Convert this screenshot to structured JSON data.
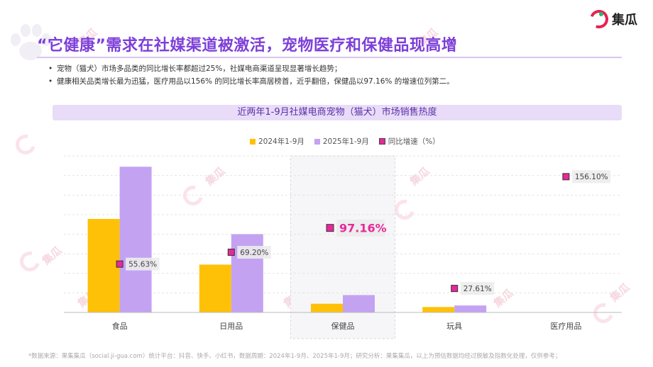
{
  "brand": {
    "logo_text": "集瓜"
  },
  "title": "“它健康”需求在社媒渠道被激活，宠物医疗和保健品现高增",
  "bullets": [
    "宠物（猫犬）市场多品类的同比增长率都超过25%，社媒电商渠道呈现显著增长趋势；",
    "健康相关品类增长最为迅猛，医疗用品以156% 的同比增长率高居榜首，近乎翻倍，保健品以97.16% 的增速位列第二。"
  ],
  "watermark": "集瓜",
  "chart_data": {
    "type": "bar",
    "title": "近两年1-9月社媒电商宠物（猫犬）市场销售热度",
    "categories": [
      "食品",
      "日用品",
      "保健品",
      "玩具",
      "医疗用品"
    ],
    "series": [
      {
        "name": "2024年1-9月",
        "color": "#ffc107",
        "values": [
          43,
          22,
          4,
          2.5,
          0
        ]
      },
      {
        "name": "2025年1-9月",
        "color": "#c3a2f2",
        "values": [
          67,
          36,
          8,
          3.2,
          0
        ]
      }
    ],
    "growth": {
      "name": "同比增速（%）",
      "color": "#e8289a",
      "values": [
        55.63,
        69.2,
        97.16,
        27.61,
        156.1
      ],
      "labels": [
        "55.63%",
        "69.20%",
        "97.16%",
        "27.61%",
        "156.10%"
      ]
    },
    "highlight_category": "保健品",
    "grid": true
  },
  "source": "*数据来源：果集集瓜（social.ji-gua.com）统计平台：抖音、快手、小红书，数据周期：2024年1-9月、2025年1-9月；研究分析：果集集瓜，以上为预估数据均经过脱敏及指数化处理，仅供参考；"
}
